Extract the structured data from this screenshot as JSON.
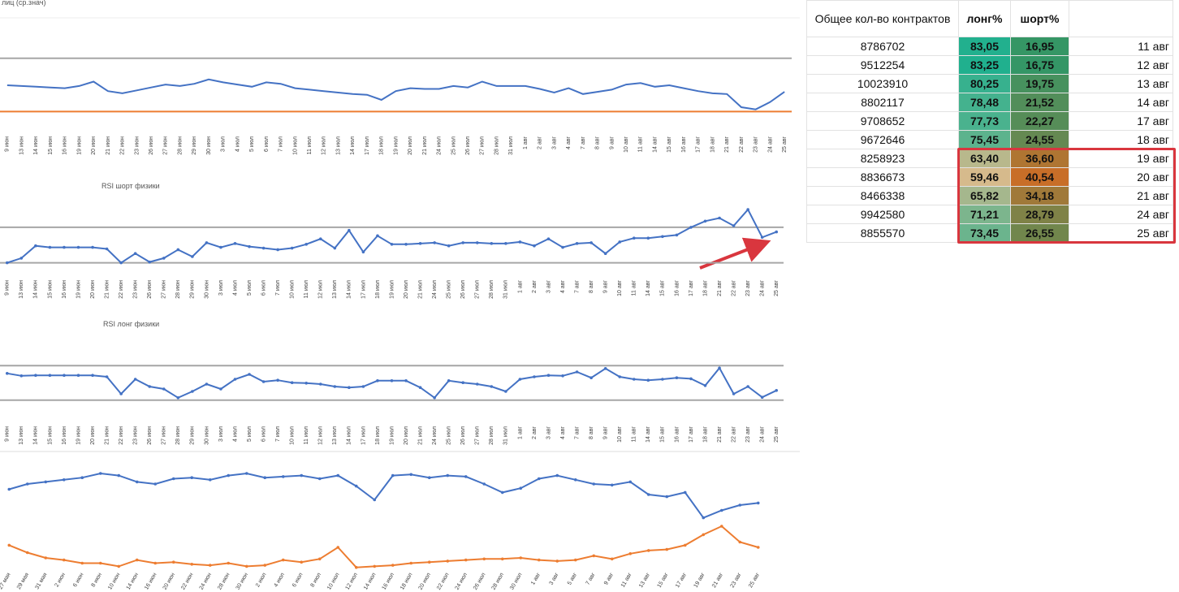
{
  "chart_data": [
    {
      "type": "line",
      "title": "лиц (ср.знач)",
      "categories": [
        "9 июн",
        "13 июн",
        "14 июн",
        "15 июн",
        "16 июн",
        "19 июн",
        "20 июн",
        "21 июн",
        "22 июн",
        "23 июн",
        "26 июн",
        "27 июн",
        "28 июн",
        "29 июн",
        "30 июн",
        "3 июл",
        "4 июл",
        "5 июл",
        "6 июл",
        "7 июл",
        "10 июл",
        "11 июл",
        "12 июл",
        "13 июл",
        "14 июл",
        "17 июл",
        "18 июл",
        "19 июл",
        "20 июл",
        "21 июл",
        "24 июл",
        "25 июл",
        "26 июл",
        "27 июл",
        "28 июл",
        "31 июл",
        "1 авг",
        "2 авг",
        "3 авг",
        "4 авг",
        "7 авг",
        "8 авг",
        "9 авг",
        "10 авг",
        "11 авг",
        "14 авг",
        "15 авг",
        "16 авг",
        "17 авг",
        "18 авг",
        "21 авг",
        "22 авг",
        "23 авг",
        "24 авг",
        "25 авг"
      ],
      "ylim": [
        0,
        100
      ],
      "markers": false,
      "reference_lines": [
        {
          "value": 87,
          "color": "#a6a6a6"
        },
        {
          "value": 14,
          "color": "#ed7d31"
        }
      ],
      "series": [
        {
          "color": "#4472c4",
          "values": [
            50,
            49,
            48,
            47,
            46,
            49,
            55,
            42,
            39,
            43,
            47,
            51,
            49,
            52,
            58,
            54,
            51,
            48,
            54,
            52,
            46,
            44,
            42,
            40,
            38,
            37,
            30,
            42,
            46,
            45,
            45,
            49,
            47,
            55,
            49,
            49,
            49,
            45,
            40,
            46,
            38,
            41,
            44,
            51,
            53,
            48,
            50,
            46,
            42,
            39,
            38,
            20,
            17,
            27,
            41
          ]
        }
      ]
    },
    {
      "type": "line",
      "title": "RSI шорт физики",
      "categories": [
        "9 июн",
        "13 июн",
        "14 июн",
        "15 июн",
        "16 июн",
        "19 июн",
        "20 июн",
        "21 июн",
        "22 июн",
        "23 июн",
        "26 июн",
        "27 июн",
        "28 июн",
        "29 июн",
        "30 июн",
        "3 июл",
        "4 июл",
        "5 июл",
        "6 июл",
        "7 июл",
        "10 июл",
        "11 июл",
        "12 июл",
        "13 июл",
        "14 июл",
        "17 июл",
        "18 июл",
        "19 июл",
        "20 июл",
        "21 июл",
        "24 июл",
        "25 июл",
        "26 июл",
        "27 июл",
        "28 июл",
        "31 июл",
        "1 авг",
        "2 авг",
        "3 авг",
        "4 авг",
        "7 авг",
        "8 авг",
        "9 авг",
        "10 авг",
        "11 авг",
        "14 авг",
        "15 авг",
        "16 авг",
        "17 авг",
        "18 авг",
        "21 авг",
        "22 авг",
        "23 авг",
        "24 авг",
        "25 авг"
      ],
      "ylim": [
        0,
        100
      ],
      "markers": true,
      "reference_lines": [
        {
          "value": 58,
          "color": "#a6a6a6"
        },
        {
          "value": 12,
          "color": "#a6a6a6"
        }
      ],
      "series": [
        {
          "color": "#4472c4",
          "values": [
            12,
            18,
            34,
            32,
            32,
            32,
            32,
            30,
            12,
            24,
            13,
            18,
            29,
            20,
            38,
            32,
            37,
            33,
            31,
            29,
            31,
            36,
            43,
            31,
            54,
            26,
            47,
            36,
            36,
            37,
            38,
            34,
            38,
            38,
            37,
            37,
            39,
            34,
            43,
            32,
            37,
            38,
            24,
            39,
            44,
            44,
            46,
            48,
            58,
            66,
            70,
            60,
            81,
            45,
            52
          ]
        }
      ]
    },
    {
      "type": "line",
      "title": "RSI лонг физики",
      "categories": [
        "9 июн",
        "13 июн",
        "14 июн",
        "15 июн",
        "16 июн",
        "19 июн",
        "20 июн",
        "21 июн",
        "22 июн",
        "23 июн",
        "26 июн",
        "27 июн",
        "28 июн",
        "29 июн",
        "30 июн",
        "3 июл",
        "4 июл",
        "5 июл",
        "6 июл",
        "7 июл",
        "10 июл",
        "11 июл",
        "12 июл",
        "13 июл",
        "14 июл",
        "17 июл",
        "18 июл",
        "19 июл",
        "20 июл",
        "21 июл",
        "24 июл",
        "25 июл",
        "26 июл",
        "27 июл",
        "28 июл",
        "31 июл",
        "1 авг",
        "2 авг",
        "3 авг",
        "4 авг",
        "7 авг",
        "8 авг",
        "9 авг",
        "10 авг",
        "11 авг",
        "14 авг",
        "15 авг",
        "16 авг",
        "17 авг",
        "18 авг",
        "21 авг",
        "22 авг",
        "23 авг",
        "24 авг",
        "25 авг"
      ],
      "ylim": [
        0,
        100
      ],
      "markers": true,
      "reference_lines": [
        {
          "value": 83,
          "color": "#a6a6a6"
        },
        {
          "value": 12,
          "color": "#a6a6a6"
        }
      ],
      "series": [
        {
          "color": "#4472c4",
          "values": [
            67,
            62,
            63,
            63,
            63,
            63,
            63,
            60,
            25,
            55,
            40,
            35,
            17,
            30,
            45,
            35,
            55,
            65,
            50,
            53,
            48,
            47,
            45,
            40,
            38,
            40,
            52,
            52,
            52,
            38,
            17,
            52,
            48,
            45,
            40,
            30,
            55,
            60,
            63,
            62,
            70,
            58,
            77,
            60,
            55,
            53,
            55,
            58,
            56,
            42,
            78,
            25,
            40,
            18,
            32
          ]
        }
      ]
    },
    {
      "type": "line",
      "categories": [
        "27 мая",
        "29 мая",
        "31 мая",
        "2 июн",
        "6 июн",
        "8 июн",
        "10 июн",
        "14 июн",
        "16 июн",
        "20 июн",
        "22 июн",
        "24 июн",
        "28 июн",
        "30 июн",
        "2 июл",
        "4 июл",
        "6 июл",
        "8 июл",
        "10 июл",
        "12 июл",
        "14 июл",
        "16 июл",
        "18 июл",
        "20 июл",
        "22 июл",
        "24 июл",
        "26 июл",
        "28 июл",
        "30 июл",
        "1 авг",
        "3 авг",
        "5 авг",
        "7 авг",
        "9 авг",
        "11 авг",
        "13 авг",
        "15 авг",
        "17 авг",
        "19 авг",
        "21 авг",
        "23 авг",
        "25 авг"
      ],
      "ylim": [
        0,
        100
      ],
      "markers": true,
      "series": [
        {
          "color": "#4472c4",
          "values": [
            75,
            80,
            82,
            84,
            86,
            90,
            88,
            82,
            80,
            85,
            86,
            84,
            88,
            90,
            86,
            87,
            88,
            85,
            88,
            78,
            65,
            88,
            89,
            86,
            88,
            87,
            80,
            72,
            76,
            85,
            88,
            84,
            80,
            79,
            82,
            70,
            68,
            72,
            48,
            55,
            60,
            62
          ]
        },
        {
          "color": "#ed7d31",
          "values": [
            22,
            15,
            10,
            8,
            5,
            5,
            2,
            8,
            5,
            6,
            4,
            3,
            5,
            2,
            3,
            8,
            6,
            9,
            20,
            1,
            2,
            3,
            5,
            6,
            7,
            8,
            9,
            9,
            10,
            8,
            7,
            8,
            12,
            9,
            14,
            17,
            18,
            22,
            32,
            40,
            25,
            20
          ]
        }
      ]
    }
  ],
  "table": {
    "header": [
      "Общее кол-во контрактов",
      "лонг%",
      "шорт%"
    ],
    "rows": [
      [
        "8786702",
        "83,05",
        "16,95",
        "11 авг"
      ],
      [
        "9512254",
        "83,25",
        "16,75",
        "12 авг"
      ],
      [
        "10023910",
        "80,25",
        "19,75",
        "13 авг"
      ],
      [
        "8802117",
        "78,48",
        "21,52",
        "14 авг"
      ],
      [
        "9708652",
        "77,73",
        "22,27",
        "17 авг"
      ],
      [
        "9672646",
        "75,45",
        "24,55",
        "18 авг"
      ],
      [
        "8258923",
        "63,40",
        "36,60",
        "19 авг"
      ],
      [
        "8836673",
        "59,46",
        "40,54",
        "20 авг"
      ],
      [
        "8466338",
        "65,82",
        "34,18",
        "21 авг"
      ],
      [
        "9942580",
        "71,21",
        "28,79",
        "24 авг"
      ],
      [
        "8855570",
        "73,45",
        "26,55",
        "25 авг"
      ]
    ]
  }
}
